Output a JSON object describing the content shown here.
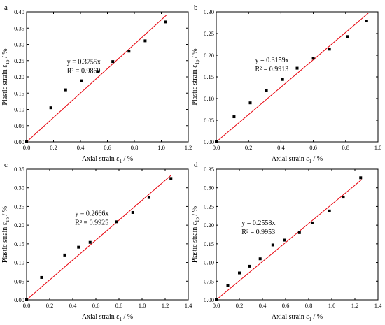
{
  "chart_data": [
    {
      "type": "scatter",
      "panel_label": "a",
      "xlabel_main": "Axial strain ε",
      "xlabel_sub": "1",
      "xlabel_unit": " / %",
      "ylabel_main": "Plastic strain ε",
      "ylabel_sub": "1p",
      "ylabel_unit": " / %",
      "xlim": [
        0,
        1.2
      ],
      "ylim": [
        0,
        0.4
      ],
      "xticks": [
        0.0,
        0.2,
        0.4,
        0.6,
        0.8,
        1.0,
        1.2
      ],
      "xticklabels": [
        "0.0",
        "0.2",
        "0.4",
        "0.6",
        "0.8",
        "1.0",
        "1.2"
      ],
      "yticks": [
        0.0,
        0.05,
        0.1,
        0.15,
        0.2,
        0.25,
        0.3,
        0.35,
        0.4
      ],
      "yticklabels": [
        "0.00",
        "0.05",
        "0.10",
        "0.15",
        "0.20",
        "0.25",
        "0.30",
        "0.35",
        "0.40"
      ],
      "points": [
        [
          0.0,
          0.0
        ],
        [
          0.18,
          0.105
        ],
        [
          0.29,
          0.16
        ],
        [
          0.41,
          0.188
        ],
        [
          0.53,
          0.216
        ],
        [
          0.64,
          0.247
        ],
        [
          0.76,
          0.279
        ],
        [
          0.88,
          0.311
        ],
        [
          1.03,
          0.369
        ]
      ],
      "fit": {
        "slope": 0.3755,
        "x_end": 1.04,
        "equation": "y = 0.3755x",
        "r2": "R² = 0.9869"
      },
      "annotation_pos": [
        0.3,
        0.24
      ]
    },
    {
      "type": "scatter",
      "panel_label": "b",
      "xlabel_main": "Axial strain ε",
      "xlabel_sub": "1",
      "xlabel_unit": " / %",
      "ylabel_main": "Plastic strain ε",
      "ylabel_sub": "1p",
      "ylabel_unit": " / %",
      "xlim": [
        0,
        1.0
      ],
      "ylim": [
        0,
        0.3
      ],
      "xticks": [
        0.0,
        0.2,
        0.4,
        0.6,
        0.8,
        1.0
      ],
      "xticklabels": [
        "0.0",
        "0.2",
        "0.4",
        "0.6",
        "0.8",
        "1.0"
      ],
      "yticks": [
        0.0,
        0.05,
        0.1,
        0.15,
        0.2,
        0.25,
        0.3
      ],
      "yticklabels": [
        "0.00",
        "0.05",
        "0.10",
        "0.15",
        "0.20",
        "0.25",
        "0.30"
      ],
      "points": [
        [
          0.0,
          0.0
        ],
        [
          0.11,
          0.058
        ],
        [
          0.21,
          0.09
        ],
        [
          0.31,
          0.119
        ],
        [
          0.41,
          0.144
        ],
        [
          0.5,
          0.17
        ],
        [
          0.6,
          0.193
        ],
        [
          0.7,
          0.214
        ],
        [
          0.81,
          0.243
        ],
        [
          0.93,
          0.279
        ]
      ],
      "fit": {
        "slope": 0.3159,
        "x_end": 0.94,
        "equation": "y = 0.3159x",
        "r2": "R² = 0.9913"
      },
      "annotation_pos": [
        0.24,
        0.184
      ]
    },
    {
      "type": "scatter",
      "panel_label": "c",
      "xlabel_main": "Axial strain ε",
      "xlabel_sub": "1",
      "xlabel_unit": " / %",
      "ylabel_main": "Plastic strain ε",
      "ylabel_sub": "1p",
      "ylabel_unit": " / %",
      "xlim": [
        0,
        1.4
      ],
      "ylim": [
        0,
        0.35
      ],
      "xticks": [
        0.0,
        0.2,
        0.4,
        0.6,
        0.8,
        1.0,
        1.2,
        1.4
      ],
      "xticklabels": [
        "0.0",
        "0.2",
        "0.4",
        "0.6",
        "0.8",
        "1.0",
        "1.2",
        "1.4"
      ],
      "yticks": [
        0.0,
        0.05,
        0.1,
        0.15,
        0.2,
        0.25,
        0.3,
        0.35
      ],
      "yticklabels": [
        "0.00",
        "0.05",
        "0.10",
        "0.15",
        "0.20",
        "0.25",
        "0.30",
        "0.35"
      ],
      "points": [
        [
          0.0,
          0.0
        ],
        [
          0.13,
          0.06
        ],
        [
          0.33,
          0.12
        ],
        [
          0.45,
          0.141
        ],
        [
          0.55,
          0.154
        ],
        [
          0.78,
          0.209
        ],
        [
          0.92,
          0.234
        ],
        [
          1.06,
          0.274
        ],
        [
          1.25,
          0.325
        ]
      ],
      "fit": {
        "slope": 0.2666,
        "x_end": 1.25,
        "equation": "y = 0.2666x",
        "r2": "R² = 0.9925"
      },
      "annotation_pos": [
        0.42,
        0.226
      ]
    },
    {
      "type": "scatter",
      "panel_label": "d",
      "xlabel_main": "Axial strain ε",
      "xlabel_sub": "1",
      "xlabel_unit": " / %",
      "ylabel_main": "Plastic strain ε",
      "ylabel_sub": "1p",
      "ylabel_unit": " / %",
      "xlim": [
        0,
        1.4
      ],
      "ylim": [
        0,
        0.35
      ],
      "xticks": [
        0.0,
        0.2,
        0.4,
        0.6,
        0.8,
        1.0,
        1.2,
        1.4
      ],
      "xticklabels": [
        "0.0",
        "0.2",
        "0.4",
        "0.6",
        "0.8",
        "1.0",
        "1.2",
        "1.4"
      ],
      "yticks": [
        0.0,
        0.05,
        0.1,
        0.15,
        0.2,
        0.25,
        0.3,
        0.35
      ],
      "yticklabels": [
        "0.00",
        "0.05",
        "0.10",
        "0.15",
        "0.20",
        "0.25",
        "0.30",
        "0.35"
      ],
      "points": [
        [
          0.0,
          0.0
        ],
        [
          0.1,
          0.038
        ],
        [
          0.2,
          0.072
        ],
        [
          0.29,
          0.09
        ],
        [
          0.38,
          0.11
        ],
        [
          0.49,
          0.147
        ],
        [
          0.59,
          0.16
        ],
        [
          0.72,
          0.18
        ],
        [
          0.83,
          0.206
        ],
        [
          0.98,
          0.238
        ],
        [
          1.1,
          0.275
        ],
        [
          1.25,
          0.327
        ]
      ],
      "fit": {
        "slope": 0.2558,
        "x_end": 1.26,
        "equation": "y = 0.2558x",
        "r2": "R² = 0.9953"
      },
      "annotation_pos": [
        0.22,
        0.2
      ]
    }
  ],
  "colors": {
    "fit_line": "#e8000b",
    "points": "#000000",
    "axes": "#000000"
  }
}
